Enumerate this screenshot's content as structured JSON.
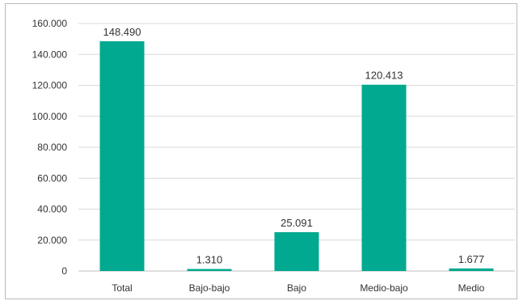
{
  "chart_data": {
    "type": "bar",
    "categories": [
      "Total",
      "Bajo-bajo",
      "Bajo",
      "Medio-bajo",
      "Medio"
    ],
    "values": [
      148490,
      1310,
      25091,
      120413,
      1677
    ],
    "value_labels": [
      "148.490",
      "1.310",
      "25.091",
      "120.413",
      "1.677"
    ],
    "yticks": [
      0,
      20000,
      40000,
      60000,
      80000,
      100000,
      120000,
      140000,
      160000
    ],
    "ytick_labels": [
      "0",
      "20.000",
      "40.000",
      "60.000",
      "80.000",
      "100.000",
      "120.000",
      "140.000",
      "160.000"
    ],
    "ylim": [
      0,
      160000
    ],
    "grid": true,
    "bar_color": "#00a98f",
    "title": "",
    "xlabel": "",
    "ylabel": ""
  }
}
